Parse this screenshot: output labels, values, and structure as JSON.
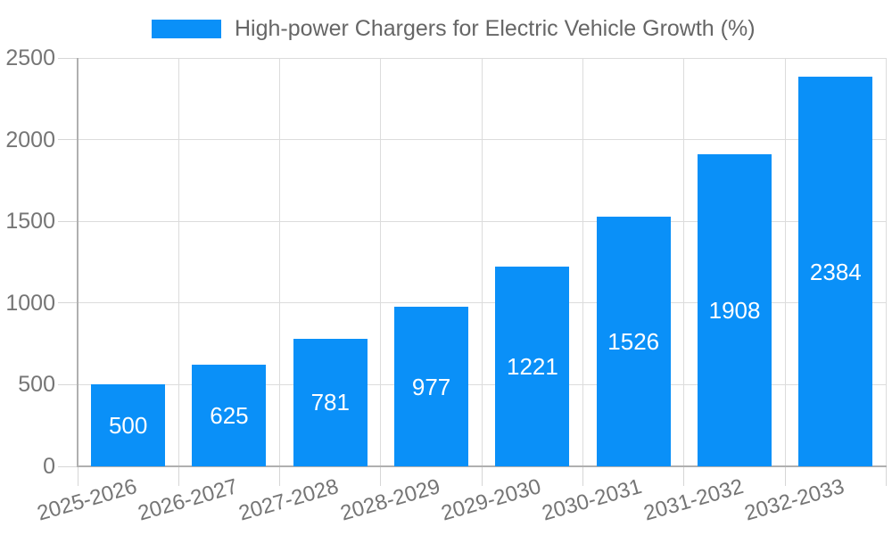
{
  "legend": {
    "label": "High-power Chargers for Electric Vehicle Growth (%)"
  },
  "chart_data": {
    "type": "bar",
    "title": "High-power Chargers for Electric Vehicle Growth (%)",
    "categories": [
      "2025-2026",
      "2026-2027",
      "2027-2028",
      "2028-2029",
      "2029-2030",
      "2030-2031",
      "2031-2032",
      "2032-2033"
    ],
    "values": [
      500,
      625,
      781,
      977,
      1221,
      1526,
      1908,
      2384
    ],
    "xlabel": "",
    "ylabel": "",
    "ylim": [
      0,
      2500
    ],
    "yticks": [
      0,
      500,
      1000,
      1500,
      2000,
      2500
    ],
    "grid": true,
    "legend_position": "top",
    "value_label_position": "inside-center",
    "x_label_rotation_deg": -16,
    "colors": {
      "bar": "#0a90f8",
      "value_label": "#ffffff",
      "grid_line": "#dcdcdc",
      "axis_line": "#b0b0b0",
      "tick_label": "#757575",
      "legend_text": "#666666",
      "background": "#ffffff"
    }
  }
}
